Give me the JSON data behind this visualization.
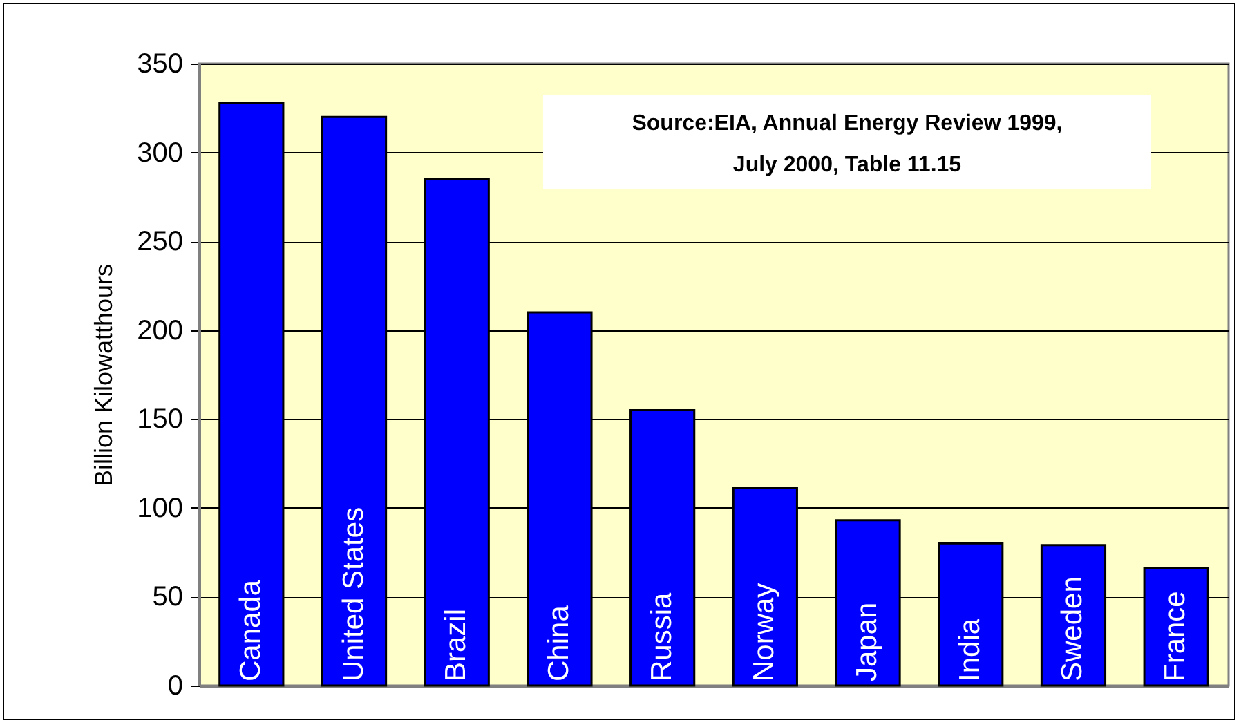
{
  "chart_data": {
    "type": "bar",
    "ylabel": "Billion Kilowatthours",
    "categories": [
      "Canada",
      "United States",
      "Brazil",
      "China",
      "Russia",
      "Norway",
      "Japan",
      "India",
      "Sweden",
      "France"
    ],
    "values": [
      328,
      320,
      285,
      210,
      155,
      111,
      93,
      80,
      79,
      66
    ],
    "color": "#0000ff",
    "ylim": [
      0,
      350
    ],
    "yticks": [
      0,
      50,
      100,
      150,
      200,
      250,
      300,
      350
    ],
    "grid": "y",
    "annotations": [
      "Source:EIA, Annual Energy Review 1999,\nJuly 2000, Table 11.15"
    ]
  }
}
